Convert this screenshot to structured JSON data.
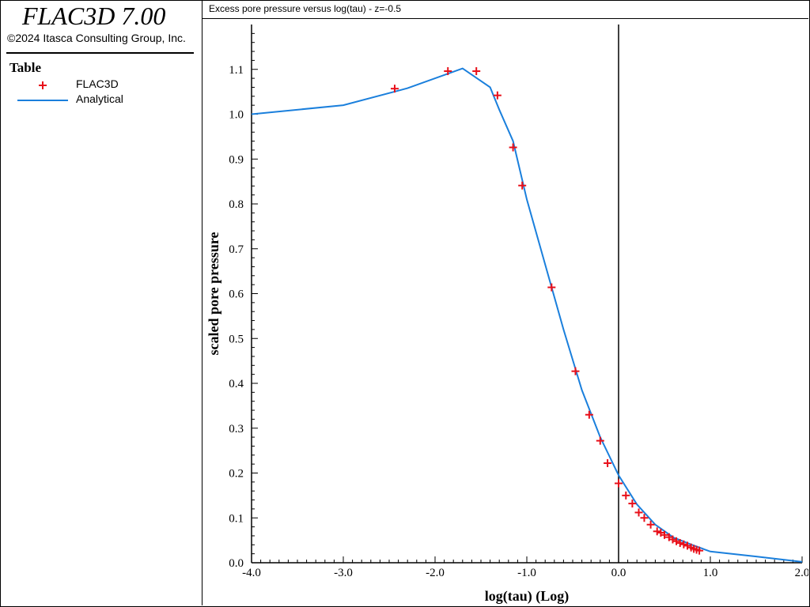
{
  "app": {
    "title": "FLAC3D 7.00",
    "copyright": "©2024 Itasca Consulting Group, Inc."
  },
  "legend": {
    "title": "Table",
    "items": [
      {
        "label": "FLAC3D",
        "marker": "plus",
        "color": "#e8101a"
      },
      {
        "label": "Analytical",
        "marker": "line",
        "color": "#1a7fdc"
      }
    ]
  },
  "plot": {
    "title": "Excess pore pressure versus log(tau) - z=-0.5"
  },
  "chart_data": {
    "type": "line",
    "xlabel": "log(tau) (Log)",
    "ylabel": "scaled pore pressure",
    "xlim": [
      -4.0,
      2.0
    ],
    "ylim": [
      0.0,
      1.2
    ],
    "x_ticks": [
      "-4.0",
      "-3.0",
      "-2.0",
      "-1.0",
      "0.0",
      "1.0",
      "2.0"
    ],
    "y_ticks": [
      "0.0",
      "0.1",
      "0.2",
      "0.3",
      "0.4",
      "0.5",
      "0.6",
      "0.7",
      "0.8",
      "0.9",
      "1.0",
      "1.1"
    ],
    "zero_line_x": 0.0,
    "series": [
      {
        "name": "Analytical",
        "style": "line",
        "color": "#1a7fdc",
        "points": [
          [
            -4.0,
            1.0
          ],
          [
            -3.0,
            1.02
          ],
          [
            -2.3,
            1.058
          ],
          [
            -1.7,
            1.102
          ],
          [
            -1.4,
            1.06
          ],
          [
            -1.3,
            1.01
          ],
          [
            -1.15,
            0.94
          ],
          [
            -1.0,
            0.81
          ],
          [
            -0.8,
            0.665
          ],
          [
            -0.6,
            0.52
          ],
          [
            -0.4,
            0.385
          ],
          [
            -0.2,
            0.28
          ],
          [
            0.0,
            0.195
          ],
          [
            0.2,
            0.13
          ],
          [
            0.4,
            0.085
          ],
          [
            0.6,
            0.056
          ],
          [
            0.8,
            0.04
          ],
          [
            1.0,
            0.025
          ],
          [
            1.5,
            0.014
          ],
          [
            2.0,
            0.002
          ]
        ]
      },
      {
        "name": "FLAC3D",
        "style": "plus",
        "color": "#e8101a",
        "points": [
          [
            -2.44,
            1.057
          ],
          [
            -1.86,
            1.096
          ],
          [
            -1.55,
            1.096
          ],
          [
            -1.32,
            1.042
          ],
          [
            -1.15,
            0.926
          ],
          [
            -1.05,
            0.841
          ],
          [
            -0.73,
            0.614
          ],
          [
            -0.47,
            0.427
          ],
          [
            -0.32,
            0.33
          ],
          [
            -0.2,
            0.272
          ],
          [
            -0.12,
            0.222
          ],
          [
            0.0,
            0.177
          ],
          [
            0.08,
            0.15
          ],
          [
            0.15,
            0.132
          ],
          [
            0.22,
            0.112
          ],
          [
            0.28,
            0.1
          ],
          [
            0.35,
            0.085
          ],
          [
            0.42,
            0.07
          ],
          [
            0.46,
            0.067
          ],
          [
            0.5,
            0.062
          ],
          [
            0.55,
            0.057
          ],
          [
            0.59,
            0.052
          ],
          [
            0.63,
            0.048
          ],
          [
            0.67,
            0.044
          ],
          [
            0.71,
            0.041
          ],
          [
            0.75,
            0.038
          ],
          [
            0.79,
            0.034
          ],
          [
            0.82,
            0.031
          ],
          [
            0.85,
            0.029
          ],
          [
            0.88,
            0.027
          ]
        ]
      }
    ]
  }
}
